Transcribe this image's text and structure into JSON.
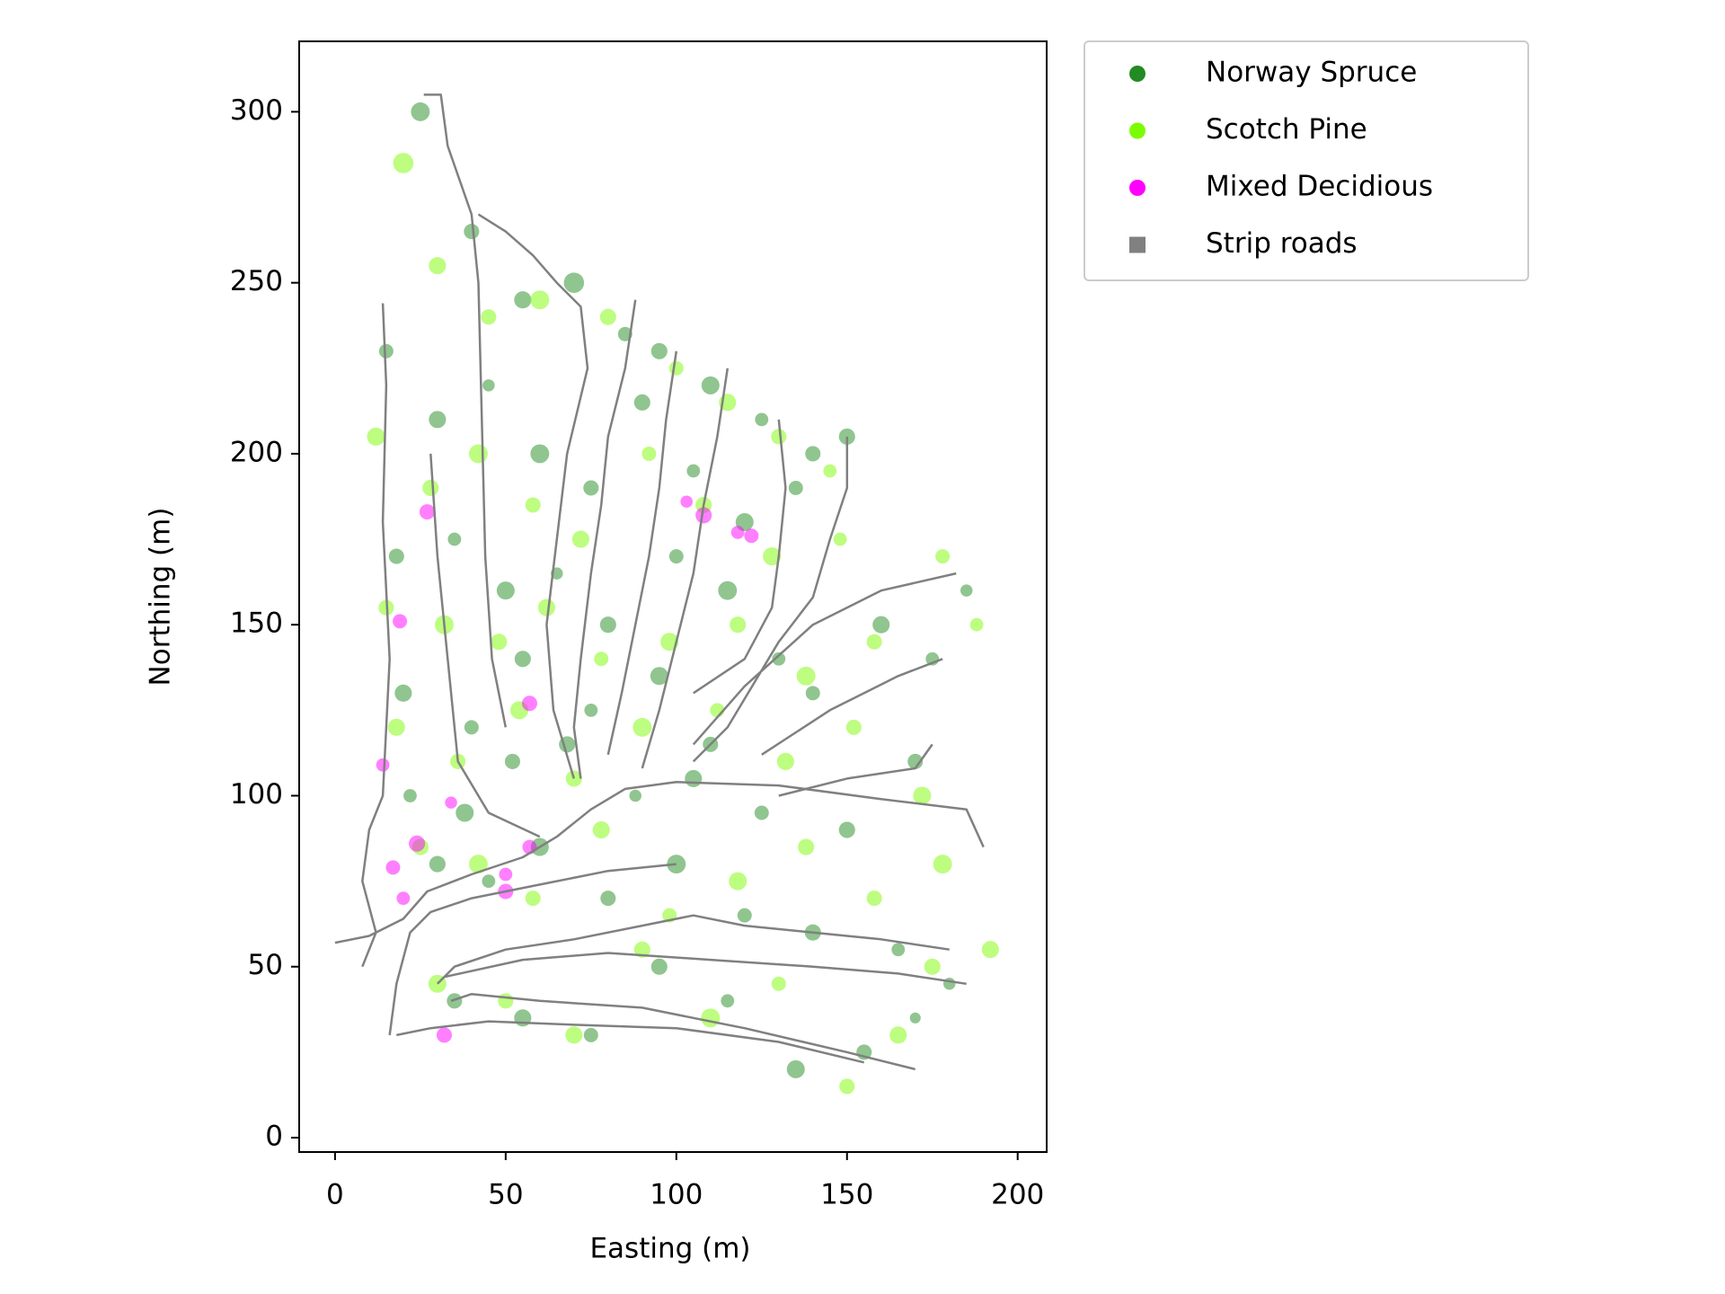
{
  "chart_data": {
    "type": "scatter",
    "xlabel": "Easting (m)",
    "ylabel": "Northing (m)",
    "xlim": [
      -10.5,
      208.5
    ],
    "ylim": [
      -4.2,
      320.6
    ],
    "xticks": [
      0,
      50,
      100,
      150,
      200
    ],
    "yticks": [
      0,
      50,
      100,
      150,
      200,
      250,
      300
    ],
    "legend": "outside upper right",
    "alpha": 0.5,
    "series": [
      {
        "name": "Norway Spruce",
        "color": "#228b22",
        "x": [
          25,
          40,
          55,
          70,
          85,
          95,
          110,
          125,
          140,
          150,
          15,
          30,
          45,
          60,
          75,
          90,
          105,
          120,
          135,
          18,
          35,
          50,
          65,
          80,
          100,
          115,
          130,
          20,
          40,
          55,
          75,
          95,
          110,
          140,
          160,
          175,
          185,
          22,
          38,
          52,
          68,
          88,
          105,
          125,
          150,
          170,
          30,
          45,
          60,
          80,
          100,
          120,
          140,
          165,
          180,
          35,
          55,
          75,
          95,
          115,
          135,
          155,
          170
        ],
        "y": [
          300,
          265,
          245,
          250,
          235,
          230,
          220,
          210,
          200,
          205,
          230,
          210,
          220,
          200,
          190,
          215,
          195,
          180,
          190,
          170,
          175,
          160,
          165,
          150,
          170,
          160,
          140,
          130,
          120,
          140,
          125,
          135,
          115,
          130,
          150,
          140,
          160,
          100,
          95,
          110,
          115,
          100,
          105,
          95,
          90,
          110,
          80,
          75,
          85,
          70,
          80,
          65,
          60,
          55,
          45,
          40,
          35,
          30,
          50,
          40,
          20,
          25,
          35
        ],
        "sizes": [
          60,
          40,
          50,
          70,
          35,
          45,
          55,
          30,
          40,
          45,
          35,
          50,
          25,
          60,
          40,
          45,
          30,
          55,
          35,
          40,
          30,
          55,
          25,
          45,
          35,
          60,
          30,
          50,
          35,
          45,
          30,
          55,
          40,
          35,
          50,
          30,
          25,
          30,
          55,
          40,
          45,
          25,
          50,
          35,
          45,
          40,
          45,
          30,
          55,
          40,
          60,
          35,
          45,
          30,
          25,
          40,
          50,
          35,
          45,
          30,
          55,
          40,
          20
        ]
      },
      {
        "name": "Scotch Pine",
        "color": "#7cfc00",
        "x": [
          20,
          30,
          45,
          60,
          80,
          100,
          115,
          130,
          145,
          12,
          28,
          42,
          58,
          72,
          92,
          108,
          128,
          148,
          15,
          32,
          48,
          62,
          78,
          98,
          118,
          138,
          158,
          178,
          18,
          36,
          54,
          70,
          90,
          112,
          132,
          152,
          172,
          188,
          25,
          42,
          58,
          78,
          98,
          118,
          138,
          158,
          178,
          192,
          30,
          50,
          70,
          90,
          110,
          130,
          150,
          165,
          175
        ],
        "y": [
          285,
          255,
          240,
          245,
          240,
          225,
          215,
          205,
          195,
          205,
          190,
          200,
          185,
          175,
          200,
          185,
          170,
          175,
          155,
          150,
          145,
          155,
          140,
          145,
          150,
          135,
          145,
          170,
          120,
          110,
          125,
          105,
          120,
          125,
          110,
          120,
          100,
          150,
          85,
          80,
          70,
          90,
          65,
          75,
          85,
          70,
          80,
          55,
          45,
          40,
          30,
          55,
          35,
          45,
          15,
          30,
          50
        ],
        "sizes": [
          70,
          50,
          40,
          60,
          45,
          35,
          50,
          40,
          30,
          55,
          45,
          60,
          40,
          50,
          35,
          45,
          55,
          30,
          40,
          60,
          45,
          50,
          35,
          55,
          45,
          60,
          40,
          35,
          50,
          40,
          55,
          45,
          60,
          35,
          50,
          40,
          55,
          30,
          45,
          60,
          40,
          50,
          35,
          55,
          45,
          40,
          60,
          50,
          55,
          40,
          50,
          45,
          60,
          35,
          40,
          50,
          45
        ]
      },
      {
        "name": "Mixed Decidious",
        "color": "#ff00ff",
        "x": [
          27,
          19,
          14,
          24,
          17,
          20,
          34,
          50,
          57,
          57,
          108,
          118,
          122,
          32,
          103,
          50
        ],
        "y": [
          183,
          151,
          109,
          86,
          79,
          70,
          98,
          72,
          85,
          127,
          182,
          177,
          176,
          30,
          186,
          77
        ],
        "sizes": [
          40,
          35,
          30,
          45,
          35,
          30,
          25,
          40,
          35,
          40,
          45,
          30,
          35,
          40,
          25,
          30
        ]
      },
      {
        "name": "Strip roads",
        "color": "#808080",
        "type": "line",
        "x": [
          0,
          10,
          20,
          27,
          40,
          55,
          65,
          75,
          85,
          100,
          130,
          160,
          185,
          190,
          null,
          26,
          31,
          33,
          40,
          42,
          43,
          44,
          46,
          50,
          null,
          14,
          15,
          14,
          16,
          14,
          10,
          8,
          12,
          8,
          null,
          42,
          50,
          58,
          65,
          72,
          74,
          68,
          65,
          62,
          64,
          70,
          null,
          28,
          30,
          33,
          36,
          45,
          60,
          null,
          88,
          85,
          80,
          78,
          75,
          72,
          70,
          72,
          null,
          100,
          97,
          95,
          92,
          88,
          84,
          80,
          null,
          115,
          112,
          108,
          105,
          100,
          95,
          90,
          null,
          130,
          132,
          130,
          128,
          120,
          105,
          null,
          150,
          150,
          145,
          140,
          130,
          115,
          105,
          null,
          182,
          160,
          140,
          120,
          105,
          null,
          178,
          165,
          145,
          125,
          null,
          175,
          170,
          150,
          130,
          null,
          100,
          80,
          60,
          40,
          28,
          22,
          18,
          16,
          null,
          180,
          160,
          140,
          120,
          105,
          90,
          70,
          50,
          35,
          30,
          null,
          185,
          165,
          140,
          110,
          80,
          55,
          32,
          null,
          170,
          150,
          120,
          90,
          60,
          40,
          34,
          null,
          155,
          130,
          100,
          70,
          45,
          28,
          18
        ],
        "y": [
          57,
          59,
          64,
          72,
          77,
          82,
          88,
          96,
          102,
          104,
          103,
          99,
          96,
          85,
          null,
          305,
          305,
          290,
          270,
          250,
          210,
          170,
          140,
          120,
          null,
          244,
          220,
          180,
          140,
          100,
          90,
          75,
          60,
          50,
          null,
          270,
          265,
          258,
          250,
          243,
          225,
          200,
          175,
          150,
          125,
          105,
          null,
          200,
          170,
          140,
          110,
          95,
          88,
          null,
          245,
          225,
          205,
          185,
          165,
          140,
          120,
          105,
          null,
          230,
          210,
          190,
          170,
          150,
          130,
          112,
          null,
          225,
          205,
          185,
          165,
          145,
          125,
          108,
          null,
          210,
          190,
          170,
          155,
          140,
          130,
          null,
          205,
          190,
          175,
          158,
          145,
          120,
          110,
          null,
          165,
          160,
          150,
          132,
          115,
          null,
          140,
          135,
          125,
          112,
          null,
          115,
          108,
          105,
          100,
          null,
          80,
          78,
          74,
          70,
          66,
          60,
          45,
          30,
          null,
          55,
          58,
          60,
          62,
          65,
          62,
          58,
          55,
          50,
          45,
          null,
          45,
          48,
          50,
          52,
          54,
          52,
          47,
          null,
          20,
          25,
          32,
          38,
          40,
          42,
          40,
          null,
          22,
          28,
          32,
          33,
          34,
          32,
          30
        ]
      }
    ]
  }
}
